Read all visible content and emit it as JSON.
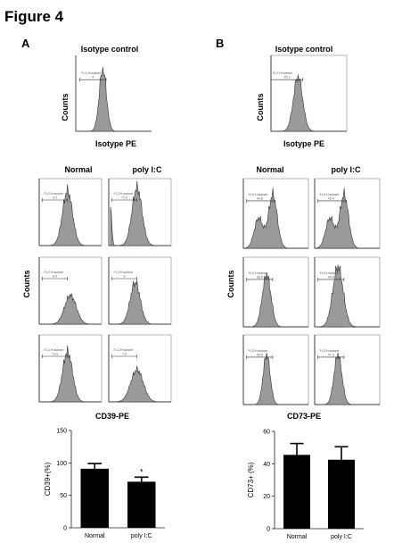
{
  "figure": {
    "title": "Figure 4",
    "panels": [
      {
        "letter": "A",
        "isotype_title": "Isotype control",
        "isotype_ylabel": "Counts",
        "isotype_xlabel": "Isotype PE",
        "col_headers": [
          "Normal",
          "poly I:C"
        ],
        "grid_ylabel": "Counts",
        "grid_xlabel": "CD39-PE",
        "gates": {
          "iso": [
            "FL2-H:subset",
            "4"
          ],
          "grid": [
            [
              "FL2-H:subset",
              "9.2"
            ],
            [
              "FL2-H:subset",
              "71.5"
            ],
            [
              "FL2-H:subset",
              "6.9"
            ],
            [
              "FL2-H:subset",
              "8"
            ],
            [
              "FL2-H:subset",
              "73.5"
            ],
            [
              "FL2-H:subset",
              "7.5"
            ]
          ]
        }
      },
      {
        "letter": "B",
        "isotype_title": "Isotype control",
        "isotype_ylabel": "Counts",
        "isotype_xlabel": "Isotype PE",
        "col_headers": [
          "Normal",
          "poly I:C"
        ],
        "grid_ylabel": "Counts",
        "grid_xlabel": "CD73-PE",
        "gates": {
          "iso": [
            "FL2-H:subset",
            "25.3"
          ],
          "grid": [
            [
              "FL2-H:subset",
              "44.8"
            ],
            [
              "FL2-H:subset",
              "42.4"
            ],
            [
              "FL2-H:subset",
              "38.8"
            ],
            [
              "FL2-H:subset",
              "40.8"
            ],
            [
              "FL2-H:subset",
              "49.5"
            ],
            [
              "FL2-H:subset",
              "47.3"
            ]
          ]
        }
      }
    ]
  },
  "chart_data": [
    {
      "type": "bar",
      "categories": [
        "Normal",
        "poly I:C"
      ],
      "values": [
        91,
        71
      ],
      "errors": [
        8,
        7
      ],
      "ylabel": "CD39+(%)",
      "ylim": [
        0,
        150
      ],
      "yticks": [
        "0",
        "50",
        "100",
        "150"
      ],
      "annotations": [
        "*"
      ]
    },
    {
      "type": "bar",
      "categories": [
        "Normal",
        "poly I:C"
      ],
      "values": [
        45.5,
        42.5
      ],
      "errors": [
        7,
        8
      ],
      "ylabel": "CD73+ (%)",
      "ylim": [
        0,
        60
      ],
      "yticks": [
        "0",
        "20",
        "40",
        "60"
      ],
      "annotations": []
    }
  ]
}
